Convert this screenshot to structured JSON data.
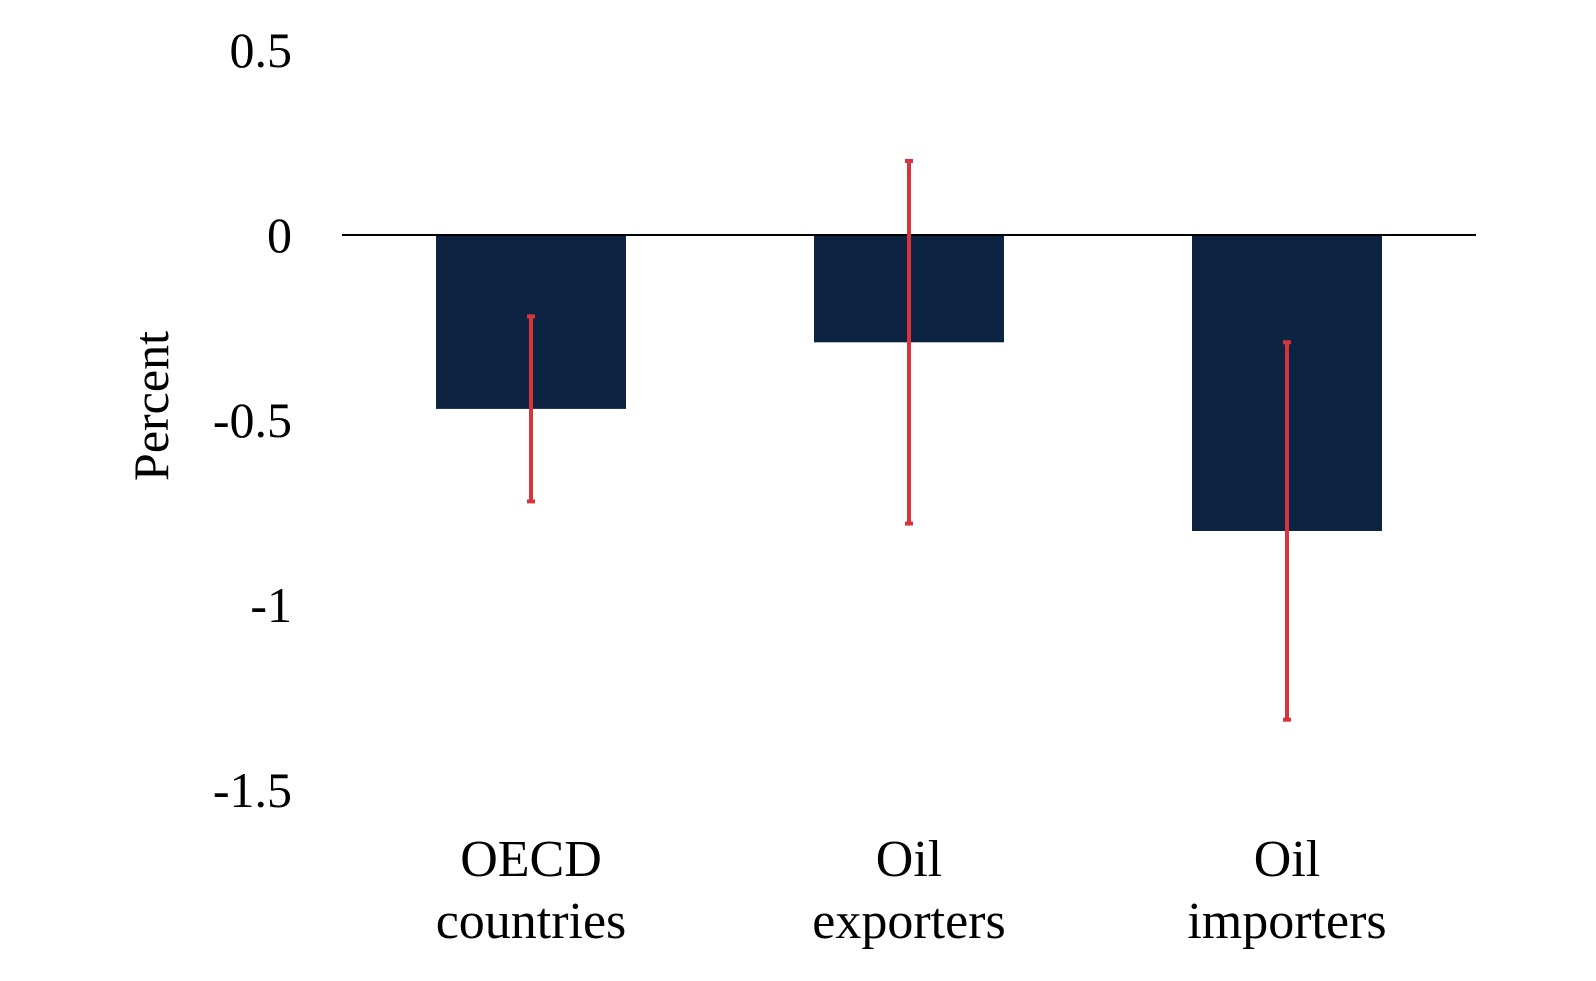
{
  "chart_data": {
    "type": "bar",
    "ylabel": "Percent",
    "xlabel": "",
    "title": "",
    "ylim": [
      -1.5,
      0.5
    ],
    "yticks": [
      0.5,
      0,
      -0.5,
      -1,
      -1.5
    ],
    "ytick_labels": [
      "0.5",
      "0",
      "-0.5",
      "-1",
      "-1.5"
    ],
    "categories": [
      [
        "OECD",
        "countries"
      ],
      [
        "Oil",
        "exporters"
      ],
      [
        "Oil",
        "importers"
      ]
    ],
    "values": [
      -0.47,
      -0.29,
      -0.8
    ],
    "error_bars": [
      {
        "upper": -0.22,
        "lower": -0.72
      },
      {
        "upper": 0.2,
        "lower": -0.78
      },
      {
        "upper": -0.29,
        "lower": -1.31
      }
    ],
    "grid": false,
    "legend": "none",
    "colors": {
      "bar": "#0c2342",
      "error_bar": "#d9333b",
      "zero_line": "#000000"
    }
  }
}
